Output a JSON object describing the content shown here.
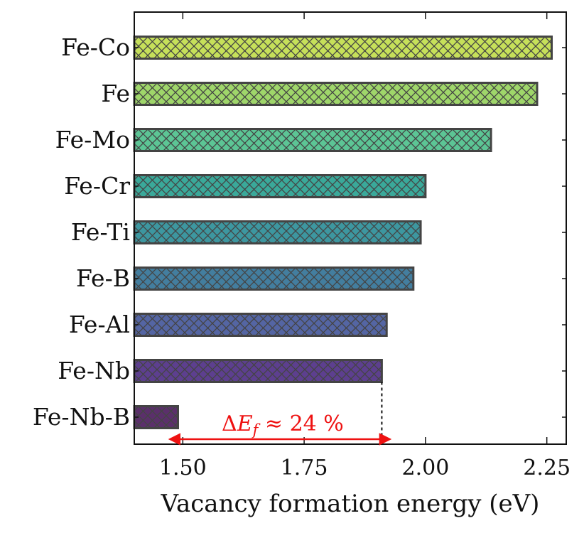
{
  "chart_data": {
    "type": "bar",
    "orientation": "horizontal",
    "title": "",
    "xlabel": "Vacancy formation energy (eV)",
    "ylabel": "",
    "xlim": [
      1.4,
      2.29
    ],
    "xticks": [
      1.5,
      1.75,
      2.0,
      2.25
    ],
    "xtick_labels": [
      "1.50",
      "1.75",
      "2.00",
      "2.25"
    ],
    "grid": false,
    "hatch": "cross",
    "categories": [
      "Fe-Co",
      "Fe",
      "Fe-Mo",
      "Fe-Cr",
      "Fe-Ti",
      "Fe-B",
      "Fe-Al",
      "Fe-Nb",
      "Fe-Nb-B"
    ],
    "values": [
      2.26,
      2.23,
      2.135,
      2.0,
      1.99,
      1.975,
      1.92,
      1.91,
      1.49
    ],
    "colors": [
      "#c6e05a",
      "#9fd66a",
      "#5cc595",
      "#3aa99a",
      "#3d97a0",
      "#437e9f",
      "#5465a3",
      "#5d3f8f",
      "#5b2f6b"
    ],
    "edge_color": "#444444",
    "annotation": {
      "text_prefix": "Δ",
      "text_var": "E",
      "text_sub": "f",
      "text_suffix": " ≈ 24 %",
      "color": "#ee1111",
      "arrow_from": 1.49,
      "arrow_to": 1.91,
      "reference_value": 1.91
    }
  }
}
